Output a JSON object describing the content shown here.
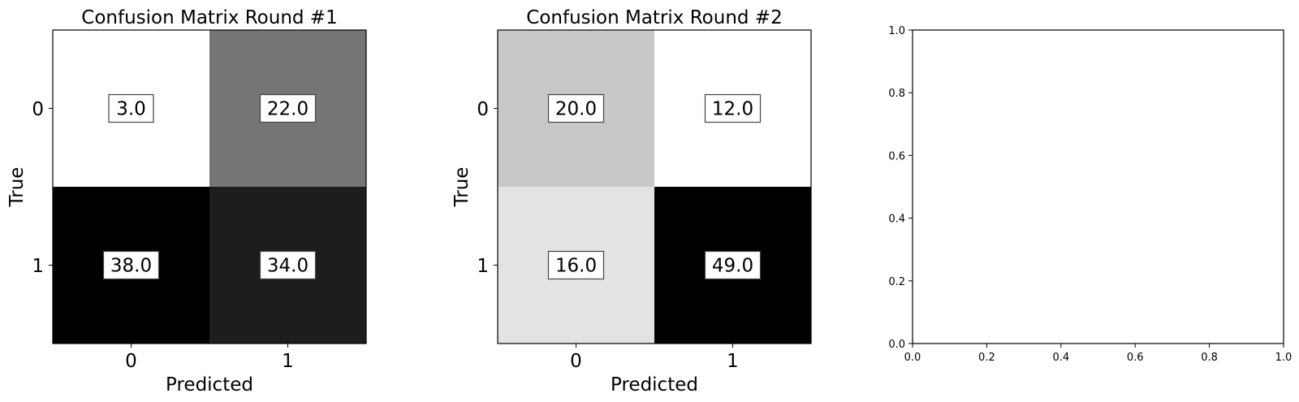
{
  "chart_data": [
    {
      "type": "heatmap",
      "title": "Confusion Matrix Round #1",
      "xlabel": "Predicted",
      "ylabel": "True",
      "x_ticks": [
        "0",
        "1"
      ],
      "y_ticks": [
        "0",
        "1"
      ],
      "values": [
        [
          3.0,
          22.0
        ],
        [
          38.0,
          34.0
        ]
      ],
      "value_labels": [
        [
          "3.0",
          "22.0"
        ],
        [
          "38.0",
          "34.0"
        ]
      ],
      "colormap": "gray_r",
      "value_range": [
        3.0,
        38.0
      ]
    },
    {
      "type": "heatmap",
      "title": "Confusion Matrix Round #2",
      "xlabel": "Predicted",
      "ylabel": "True",
      "x_ticks": [
        "0",
        "1"
      ],
      "y_ticks": [
        "0",
        "1"
      ],
      "values": [
        [
          20.0,
          12.0
        ],
        [
          16.0,
          49.0
        ]
      ],
      "value_labels": [
        [
          "20.0",
          "12.0"
        ],
        [
          "16.0",
          "49.0"
        ]
      ],
      "colormap": "gray_r",
      "value_range": [
        12.0,
        49.0
      ]
    },
    {
      "type": "scatter",
      "title": "",
      "xlabel": "",
      "ylabel": "",
      "xlim": [
        0.0,
        1.0
      ],
      "ylim": [
        0.0,
        1.0
      ],
      "x_ticks": [
        "0.0",
        "0.2",
        "0.4",
        "0.6",
        "0.8",
        "1.0"
      ],
      "y_ticks": [
        "0.0",
        "0.2",
        "0.4",
        "0.6",
        "0.8",
        "1.0"
      ],
      "grid": false,
      "series": []
    }
  ]
}
